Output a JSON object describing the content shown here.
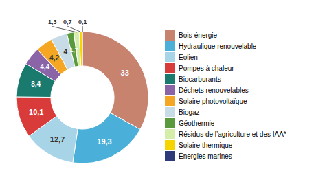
{
  "chart_data": {
    "type": "donut",
    "categories": [
      "Bois-énergie",
      "Hydraulique renouvelable",
      "Éolien",
      "Pompes à chaleur",
      "Biocarburants",
      "Déchets renouvelables",
      "Solaire photovoltaïque",
      "Biogaz",
      "Géothermie",
      "Résidus de l’agriculture et des IAA*",
      "Solaire thermique",
      "Énergies marines"
    ],
    "values": [
      33,
      19.3,
      12.7,
      10.1,
      8.4,
      4.4,
      4.2,
      4,
      1.7,
      1.3,
      0.7,
      0.1
    ],
    "value_labels": [
      "33",
      "19,3",
      "12,7",
      "10,1",
      "8,4",
      "4,4",
      "4,2",
      "4",
      "1,7",
      "1,3",
      "0,7",
      "0,1"
    ],
    "colors": [
      "#c8836e",
      "#4ab0d9",
      "#a8d4e8",
      "#d93b3b",
      "#1a7a6e",
      "#8b64a8",
      "#f5a623",
      "#c8dce8",
      "#5a9a3c",
      "#d4eeaa",
      "#f5d400",
      "#2e3a7a"
    ],
    "data_labels": true,
    "legend": "right"
  }
}
